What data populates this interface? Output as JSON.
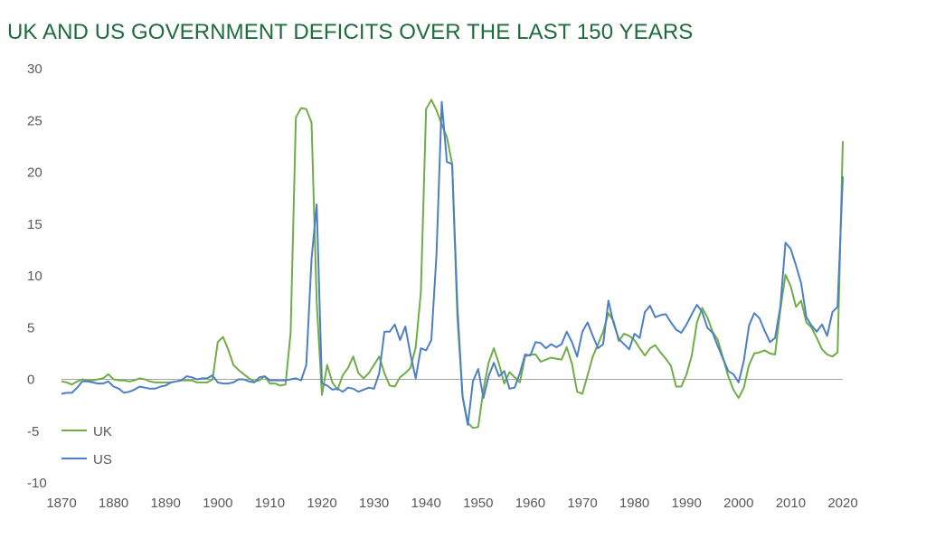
{
  "chart_data": {
    "type": "line",
    "title": "UK AND US GOVERNMENT DEFICITS OVER THE LAST 150 YEARS",
    "xlabel": "",
    "ylabel": "",
    "xlim": [
      1870,
      2020
    ],
    "ylim": [
      -10,
      30
    ],
    "x_ticks": [
      1870,
      1880,
      1890,
      1900,
      1910,
      1920,
      1930,
      1940,
      1950,
      1960,
      1970,
      1980,
      1990,
      2000,
      2010,
      2020
    ],
    "y_ticks": [
      -10,
      -5,
      0,
      5,
      10,
      15,
      20,
      25,
      30
    ],
    "grid": false,
    "legend_position": "bottom-left",
    "series": [
      {
        "name": "UK",
        "color": "#70ad47",
        "points": [
          [
            1870,
            -0.2
          ],
          [
            1871,
            -0.3
          ],
          [
            1872,
            -0.5
          ],
          [
            1873,
            -0.2
          ],
          [
            1874,
            0.0
          ],
          [
            1875,
            -0.1
          ],
          [
            1876,
            -0.1
          ],
          [
            1877,
            0.0
          ],
          [
            1878,
            0.1
          ],
          [
            1879,
            0.5
          ],
          [
            1880,
            0.0
          ],
          [
            1881,
            -0.1
          ],
          [
            1882,
            -0.1
          ],
          [
            1883,
            -0.2
          ],
          [
            1884,
            -0.1
          ],
          [
            1885,
            0.1
          ],
          [
            1886,
            0.0
          ],
          [
            1887,
            -0.2
          ],
          [
            1888,
            -0.3
          ],
          [
            1889,
            -0.3
          ],
          [
            1890,
            -0.3
          ],
          [
            1891,
            -0.3
          ],
          [
            1892,
            -0.2
          ],
          [
            1893,
            -0.1
          ],
          [
            1894,
            -0.1
          ],
          [
            1895,
            -0.1
          ],
          [
            1896,
            -0.3
          ],
          [
            1897,
            -0.3
          ],
          [
            1898,
            -0.3
          ],
          [
            1899,
            0.0
          ],
          [
            1900,
            3.6
          ],
          [
            1901,
            4.1
          ],
          [
            1902,
            2.9
          ],
          [
            1903,
            1.4
          ],
          [
            1904,
            0.9
          ],
          [
            1905,
            0.5
          ],
          [
            1906,
            0.1
          ],
          [
            1907,
            -0.2
          ],
          [
            1908,
            -0.1
          ],
          [
            1909,
            0.3
          ],
          [
            1910,
            -0.4
          ],
          [
            1911,
            -0.4
          ],
          [
            1912,
            -0.6
          ],
          [
            1913,
            -0.5
          ],
          [
            1914,
            4.5
          ],
          [
            1915,
            25.3
          ],
          [
            1916,
            26.2
          ],
          [
            1917,
            26.1
          ],
          [
            1918,
            24.8
          ],
          [
            1919,
            7.5
          ],
          [
            1920,
            -1.5
          ],
          [
            1921,
            1.4
          ],
          [
            1922,
            -0.3
          ],
          [
            1923,
            -1.0
          ],
          [
            1924,
            0.4
          ],
          [
            1925,
            1.1
          ],
          [
            1926,
            2.2
          ],
          [
            1927,
            0.6
          ],
          [
            1928,
            0.1
          ],
          [
            1929,
            0.6
          ],
          [
            1930,
            1.4
          ],
          [
            1931,
            2.2
          ],
          [
            1932,
            0.6
          ],
          [
            1933,
            -0.6
          ],
          [
            1934,
            -0.7
          ],
          [
            1935,
            0.2
          ],
          [
            1936,
            0.6
          ],
          [
            1937,
            1.1
          ],
          [
            1938,
            3.1
          ],
          [
            1939,
            8.4
          ],
          [
            1940,
            26.1
          ],
          [
            1941,
            27.0
          ],
          [
            1942,
            26.0
          ],
          [
            1943,
            24.6
          ],
          [
            1944,
            23.4
          ],
          [
            1945,
            20.8
          ],
          [
            1946,
            6.0
          ],
          [
            1947,
            -1.6
          ],
          [
            1948,
            -4.2
          ],
          [
            1949,
            -4.7
          ],
          [
            1950,
            -4.6
          ],
          [
            1951,
            -1.0
          ],
          [
            1952,
            1.6
          ],
          [
            1953,
            3.0
          ],
          [
            1954,
            1.5
          ],
          [
            1955,
            -0.4
          ],
          [
            1956,
            0.7
          ],
          [
            1957,
            0.2
          ],
          [
            1958,
            -0.3
          ],
          [
            1959,
            2.2
          ],
          [
            1960,
            2.4
          ],
          [
            1961,
            2.4
          ],
          [
            1962,
            1.7
          ],
          [
            1963,
            1.9
          ],
          [
            1964,
            2.1
          ],
          [
            1965,
            2.0
          ],
          [
            1966,
            1.9
          ],
          [
            1967,
            3.1
          ],
          [
            1968,
            1.5
          ],
          [
            1969,
            -1.2
          ],
          [
            1970,
            -1.4
          ],
          [
            1971,
            0.4
          ],
          [
            1972,
            2.2
          ],
          [
            1973,
            3.4
          ],
          [
            1974,
            4.6
          ],
          [
            1975,
            6.4
          ],
          [
            1976,
            5.6
          ],
          [
            1977,
            3.7
          ],
          [
            1978,
            4.4
          ],
          [
            1979,
            4.2
          ],
          [
            1980,
            3.8
          ],
          [
            1981,
            3.0
          ],
          [
            1982,
            2.3
          ],
          [
            1983,
            3.0
          ],
          [
            1984,
            3.3
          ],
          [
            1985,
            2.6
          ],
          [
            1986,
            2.0
          ],
          [
            1987,
            1.3
          ],
          [
            1988,
            -0.7
          ],
          [
            1989,
            -0.7
          ],
          [
            1990,
            0.5
          ],
          [
            1991,
            2.3
          ],
          [
            1992,
            5.5
          ],
          [
            1993,
            6.9
          ],
          [
            1994,
            6.0
          ],
          [
            1995,
            4.6
          ],
          [
            1996,
            3.8
          ],
          [
            1997,
            2.1
          ],
          [
            1998,
            0.3
          ],
          [
            1999,
            -1.0
          ],
          [
            2000,
            -1.8
          ],
          [
            2001,
            -0.8
          ],
          [
            2002,
            1.4
          ],
          [
            2003,
            2.5
          ],
          [
            2004,
            2.6
          ],
          [
            2005,
            2.8
          ],
          [
            2006,
            2.5
          ],
          [
            2007,
            2.4
          ],
          [
            2008,
            6.7
          ],
          [
            2009,
            10.1
          ],
          [
            2010,
            9.0
          ],
          [
            2011,
            7.0
          ],
          [
            2012,
            7.6
          ],
          [
            2013,
            5.5
          ],
          [
            2014,
            5.0
          ],
          [
            2015,
            4.0
          ],
          [
            2016,
            2.9
          ],
          [
            2017,
            2.4
          ],
          [
            2018,
            2.2
          ],
          [
            2019,
            2.6
          ],
          [
            2020,
            23.0
          ]
        ]
      },
      {
        "name": "US",
        "color": "#4e7fc4",
        "points": [
          [
            1870,
            -1.4
          ],
          [
            1871,
            -1.3
          ],
          [
            1872,
            -1.3
          ],
          [
            1873,
            -0.8
          ],
          [
            1874,
            -0.2
          ],
          [
            1875,
            -0.2
          ],
          [
            1876,
            -0.3
          ],
          [
            1877,
            -0.4
          ],
          [
            1878,
            -0.4
          ],
          [
            1879,
            -0.2
          ],
          [
            1880,
            -0.7
          ],
          [
            1881,
            -0.9
          ],
          [
            1882,
            -1.3
          ],
          [
            1883,
            -1.2
          ],
          [
            1884,
            -1.0
          ],
          [
            1885,
            -0.7
          ],
          [
            1886,
            -0.8
          ],
          [
            1887,
            -0.9
          ],
          [
            1888,
            -0.9
          ],
          [
            1889,
            -0.7
          ],
          [
            1890,
            -0.6
          ],
          [
            1891,
            -0.3
          ],
          [
            1892,
            -0.2
          ],
          [
            1893,
            -0.1
          ],
          [
            1894,
            0.3
          ],
          [
            1895,
            0.2
          ],
          [
            1896,
            0.0
          ],
          [
            1897,
            0.1
          ],
          [
            1898,
            0.1
          ],
          [
            1899,
            0.4
          ],
          [
            1900,
            -0.3
          ],
          [
            1901,
            -0.4
          ],
          [
            1902,
            -0.4
          ],
          [
            1903,
            -0.3
          ],
          [
            1904,
            0.0
          ],
          [
            1905,
            0.0
          ],
          [
            1906,
            -0.2
          ],
          [
            1907,
            -0.3
          ],
          [
            1908,
            0.2
          ],
          [
            1909,
            0.3
          ],
          [
            1910,
            -0.1
          ],
          [
            1911,
            -0.1
          ],
          [
            1912,
            -0.1
          ],
          [
            1913,
            -0.1
          ],
          [
            1914,
            0.0
          ],
          [
            1915,
            0.1
          ],
          [
            1916,
            -0.1
          ],
          [
            1917,
            1.4
          ],
          [
            1918,
            11.6
          ],
          [
            1919,
            16.9
          ],
          [
            1920,
            -0.4
          ],
          [
            1921,
            -0.6
          ],
          [
            1922,
            -1.0
          ],
          [
            1923,
            -0.9
          ],
          [
            1924,
            -1.2
          ],
          [
            1925,
            -0.8
          ],
          [
            1926,
            -0.9
          ],
          [
            1927,
            -1.2
          ],
          [
            1928,
            -1.0
          ],
          [
            1929,
            -0.8
          ],
          [
            1930,
            -0.9
          ],
          [
            1931,
            0.6
          ],
          [
            1932,
            4.6
          ],
          [
            1933,
            4.6
          ],
          [
            1934,
            5.3
          ],
          [
            1935,
            3.8
          ],
          [
            1936,
            5.1
          ],
          [
            1937,
            2.4
          ],
          [
            1938,
            0.1
          ],
          [
            1939,
            3.0
          ],
          [
            1940,
            2.8
          ],
          [
            1941,
            3.8
          ],
          [
            1942,
            12.1
          ],
          [
            1943,
            26.8
          ],
          [
            1944,
            21.0
          ],
          [
            1945,
            20.8
          ],
          [
            1946,
            7.0
          ],
          [
            1947,
            -1.7
          ],
          [
            1948,
            -4.4
          ],
          [
            1949,
            -0.2
          ],
          [
            1950,
            1.0
          ],
          [
            1951,
            -1.8
          ],
          [
            1952,
            0.3
          ],
          [
            1953,
            1.6
          ],
          [
            1954,
            0.3
          ],
          [
            1955,
            0.8
          ],
          [
            1956,
            -0.9
          ],
          [
            1957,
            -0.8
          ],
          [
            1958,
            0.6
          ],
          [
            1959,
            2.4
          ],
          [
            1960,
            2.3
          ],
          [
            1961,
            3.6
          ],
          [
            1962,
            3.5
          ],
          [
            1963,
            3.0
          ],
          [
            1964,
            3.4
          ],
          [
            1965,
            3.1
          ],
          [
            1966,
            3.4
          ],
          [
            1967,
            4.6
          ],
          [
            1968,
            3.6
          ],
          [
            1969,
            2.2
          ],
          [
            1970,
            4.6
          ],
          [
            1971,
            5.5
          ],
          [
            1972,
            4.2
          ],
          [
            1973,
            3.0
          ],
          [
            1974,
            3.4
          ],
          [
            1975,
            7.6
          ],
          [
            1976,
            5.4
          ],
          [
            1977,
            3.9
          ],
          [
            1978,
            3.4
          ],
          [
            1979,
            2.9
          ],
          [
            1980,
            4.4
          ],
          [
            1981,
            4.0
          ],
          [
            1982,
            6.5
          ],
          [
            1983,
            7.1
          ],
          [
            1984,
            6.0
          ],
          [
            1985,
            6.2
          ],
          [
            1986,
            6.3
          ],
          [
            1987,
            5.5
          ],
          [
            1988,
            4.8
          ],
          [
            1989,
            4.5
          ],
          [
            1990,
            5.3
          ],
          [
            1991,
            6.3
          ],
          [
            1992,
            7.2
          ],
          [
            1993,
            6.5
          ],
          [
            1994,
            5.0
          ],
          [
            1995,
            4.5
          ],
          [
            1996,
            3.2
          ],
          [
            1997,
            2.0
          ],
          [
            1998,
            0.8
          ],
          [
            1999,
            0.5
          ],
          [
            2000,
            -0.3
          ],
          [
            2001,
            1.8
          ],
          [
            2002,
            5.2
          ],
          [
            2003,
            6.4
          ],
          [
            2004,
            5.9
          ],
          [
            2005,
            4.7
          ],
          [
            2006,
            3.6
          ],
          [
            2007,
            4.0
          ],
          [
            2008,
            7.0
          ],
          [
            2009,
            13.2
          ],
          [
            2010,
            12.6
          ],
          [
            2011,
            11.0
          ],
          [
            2012,
            9.3
          ],
          [
            2013,
            6.0
          ],
          [
            2014,
            5.2
          ],
          [
            2015,
            4.6
          ],
          [
            2016,
            5.3
          ],
          [
            2017,
            4.2
          ],
          [
            2018,
            6.5
          ],
          [
            2019,
            7.0
          ],
          [
            2020,
            19.6
          ]
        ]
      }
    ]
  }
}
